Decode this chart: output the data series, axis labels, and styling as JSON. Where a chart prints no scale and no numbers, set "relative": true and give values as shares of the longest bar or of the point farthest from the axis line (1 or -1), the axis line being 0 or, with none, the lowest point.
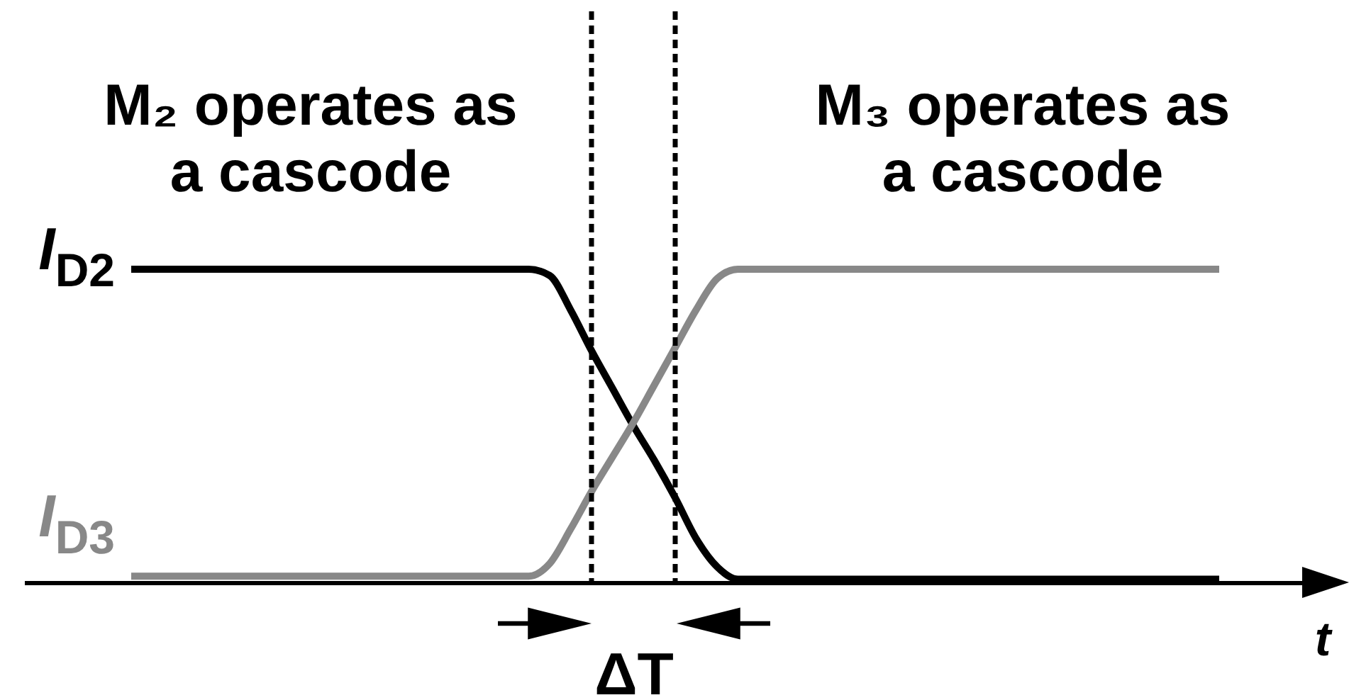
{
  "chart_data": {
    "type": "line",
    "relative": true,
    "xlabel": "t",
    "categories": [
      null,
      null,
      null,
      null,
      null,
      null,
      null,
      null,
      null,
      null,
      null,
      null,
      null,
      null,
      null,
      null,
      null,
      null,
      null,
      null,
      null,
      null,
      null,
      null,
      null,
      null,
      null,
      null,
      null,
      null,
      null,
      null,
      null,
      null,
      null,
      null,
      null,
      null,
      null,
      null,
      null,
      null,
      null,
      null,
      null,
      null,
      null,
      null,
      null,
      null,
      null,
      null,
      null
    ],
    "series": [
      {
        "name": "I$_{D2}$",
        "color": "#000000",
        "values": [
          1,
          1,
          1,
          1,
          1,
          1,
          1,
          1,
          1,
          1,
          1,
          1,
          1,
          1,
          1,
          1,
          1,
          1,
          1,
          1,
          0.98,
          0.87,
          0.74,
          0.62,
          0.5,
          0.39,
          0.27,
          0.14,
          0.05,
          0.01,
          0.01,
          0.01,
          0.01,
          0.01,
          0.01,
          0.01,
          0.01,
          0.01,
          0.01,
          0.01,
          0.01,
          0.01,
          0.01,
          0.01,
          0.01,
          0.01,
          0.01,
          0.01,
          0.01,
          0.01,
          0.01,
          0.01,
          0.01
        ]
      },
      {
        "name": "I$_{D3}$",
        "color": "#888888",
        "values": [
          0.02,
          0.02,
          0.02,
          0.02,
          0.02,
          0.02,
          0.02,
          0.02,
          0.02,
          0.02,
          0.02,
          0.02,
          0.02,
          0.02,
          0.02,
          0.02,
          0.02,
          0.02,
          0.02,
          0.02,
          0.06,
          0.17,
          0.29,
          0.4,
          0.51,
          0.63,
          0.75,
          0.87,
          0.97,
          1,
          1,
          1,
          1,
          1,
          1,
          1,
          1,
          1,
          1,
          1,
          1,
          1,
          1,
          1,
          1,
          1,
          1,
          1,
          1,
          1,
          1,
          1,
          1
        ]
      }
    ],
    "annotations": [
      "M₂ operates as\na cascode",
      "M₃ operates as\na cascode",
      "ΔT"
    ]
  }
}
